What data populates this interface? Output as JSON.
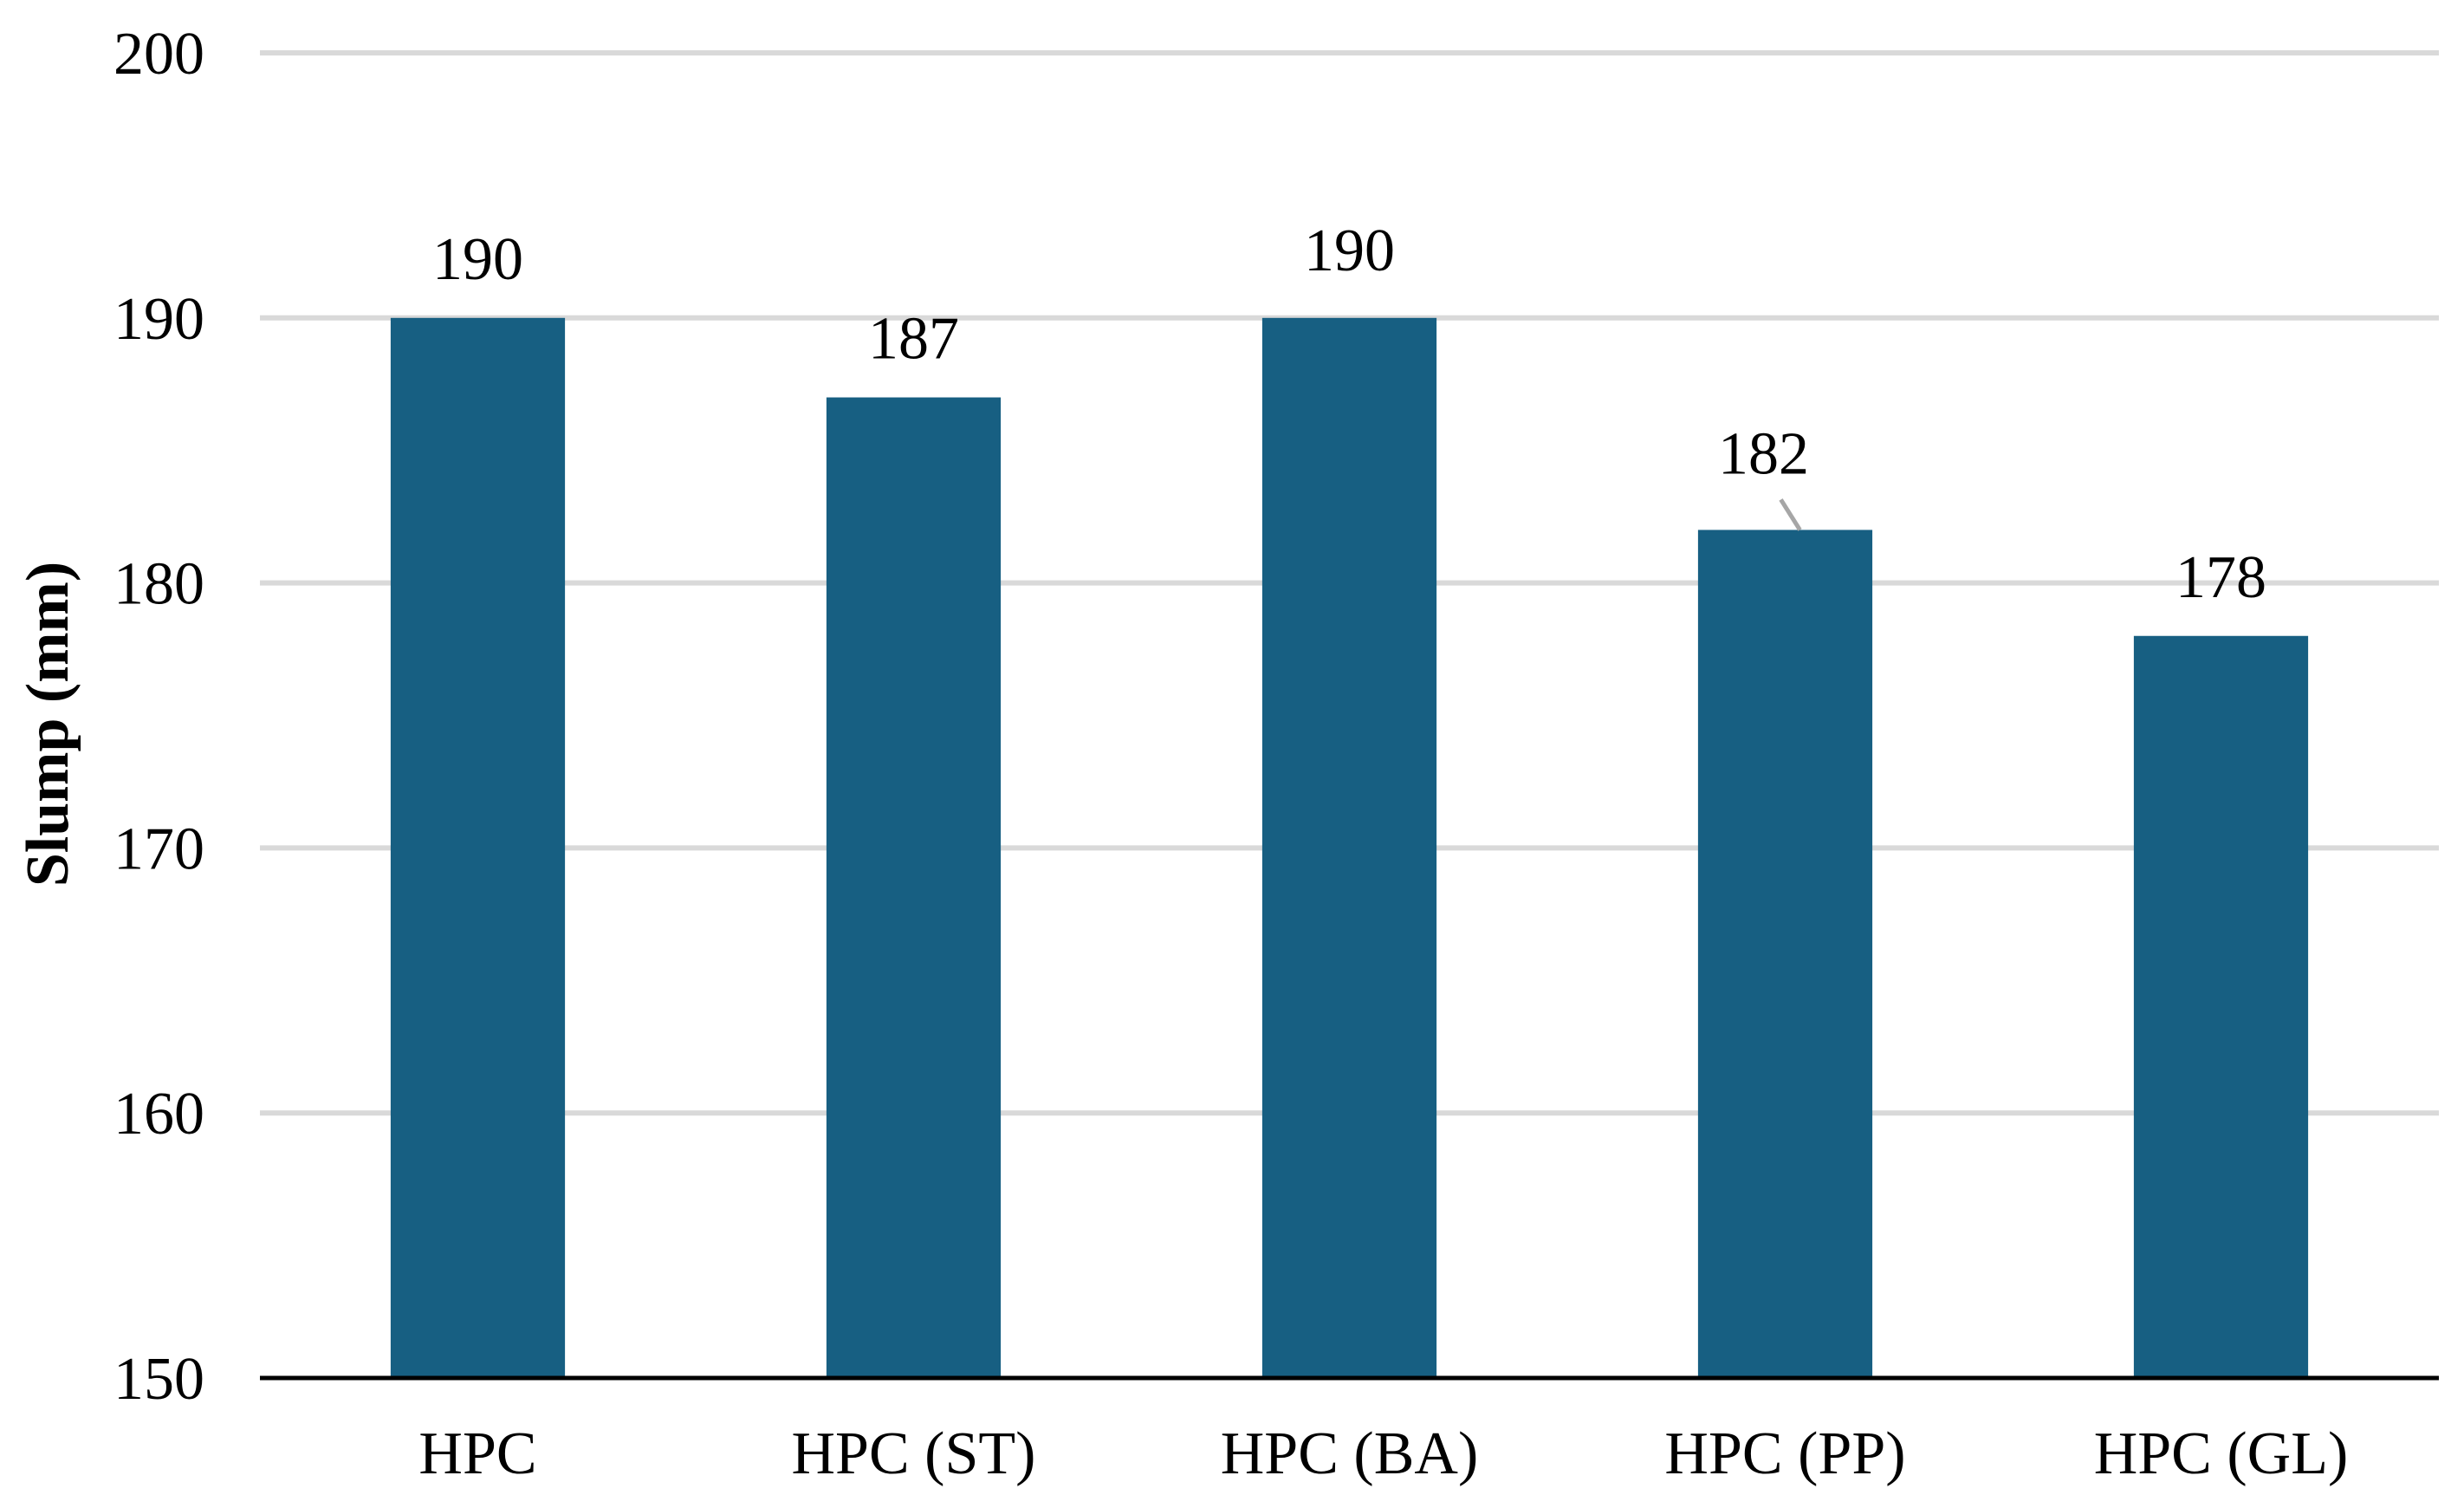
{
  "colors": {
    "bar": "#175f82",
    "gridline": "#d9d9d9",
    "baseline": "#000000",
    "leader_line": "#a6a6a6",
    "text": "#000000"
  },
  "chart_data": {
    "type": "bar",
    "title": "",
    "xlabel": "",
    "ylabel": "Slump (mm)",
    "categories": [
      "HPC",
      "HPC (ST)",
      "HPC (BA)",
      "HPC (PP)",
      "HPC (GL)"
    ],
    "values": [
      190,
      187,
      190,
      182,
      178
    ],
    "data_labels": [
      "190",
      "187",
      "190",
      "182",
      "178"
    ],
    "ylim": [
      150,
      200
    ],
    "yticks": [
      150,
      160,
      170,
      180,
      190,
      200
    ],
    "ytick_labels": [
      "150",
      "160",
      "170",
      "180",
      "190",
      "200"
    ],
    "grid": true,
    "legend": "none"
  }
}
